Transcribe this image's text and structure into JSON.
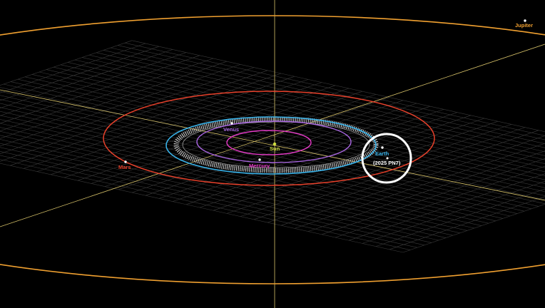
{
  "colors": {
    "grid": "#3a3a3a",
    "axis": "#d9c46a",
    "jupiter": "#f0a030",
    "mars": "#e8402a",
    "earth": "#39b3ea",
    "venus": "#a865e0",
    "mercury": "#e63ac8",
    "sun": "#cfe040",
    "asteroid_orbit": "#cfcfcf",
    "highlight_ring": "#ffffff",
    "asteroid_label": "#ffffff"
  },
  "bodies": {
    "sun": {
      "label": "Sun"
    },
    "mercury": {
      "label": "Mercury"
    },
    "venus": {
      "label": "Venus"
    },
    "earth": {
      "label": "Earth"
    },
    "mars": {
      "label": "Mars"
    },
    "jupiter": {
      "label": "Jupiter"
    },
    "asteroid": {
      "label": "(2025 PN7)"
    }
  },
  "icons": {
    "highlight": "circle-highlight-icon",
    "planet_marker": "dot-icon"
  }
}
